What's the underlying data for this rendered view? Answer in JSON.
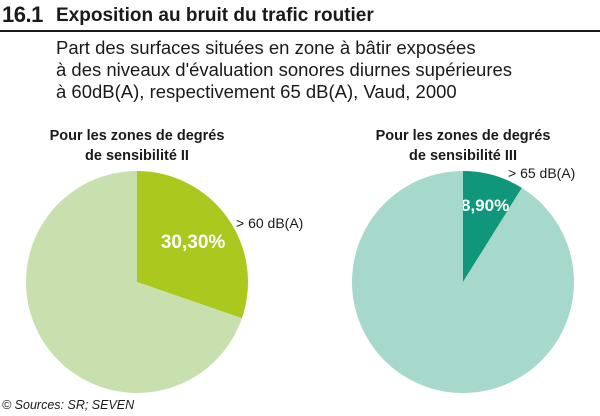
{
  "header": {
    "figure_number": "16.1",
    "title": "Exposition au bruit du trafic routier"
  },
  "subtitle": {
    "line1": "Part des surfaces situées en zone à bâtir exposées",
    "line2": "à des niveaux d'évaluation sonores diurnes supérieures",
    "line3": "à 60dB(A), respectivement 65 dB(A), Vaud, 2000"
  },
  "source": "© Sources: SR; SEVEN",
  "chart_data": [
    {
      "type": "pie",
      "title_lines": [
        "Pour les zones de degrés",
        "de sensibilité II"
      ],
      "slices": [
        {
          "label": "> 60 dB(A)",
          "value": 30.3,
          "value_label": "30,30%",
          "color": "#aac81e"
        },
        {
          "label": "",
          "value": 69.7,
          "color": "#c8e0ae"
        }
      ]
    },
    {
      "type": "pie",
      "title_lines": [
        "Pour les zones de degrés",
        "de sensibilité III"
      ],
      "slices": [
        {
          "label": "> 65 dB(A)",
          "value": 8.9,
          "value_label": "8,90%",
          "color": "#10967a"
        },
        {
          "label": "",
          "value": 91.1,
          "color": "#a6d8cc"
        }
      ]
    }
  ]
}
